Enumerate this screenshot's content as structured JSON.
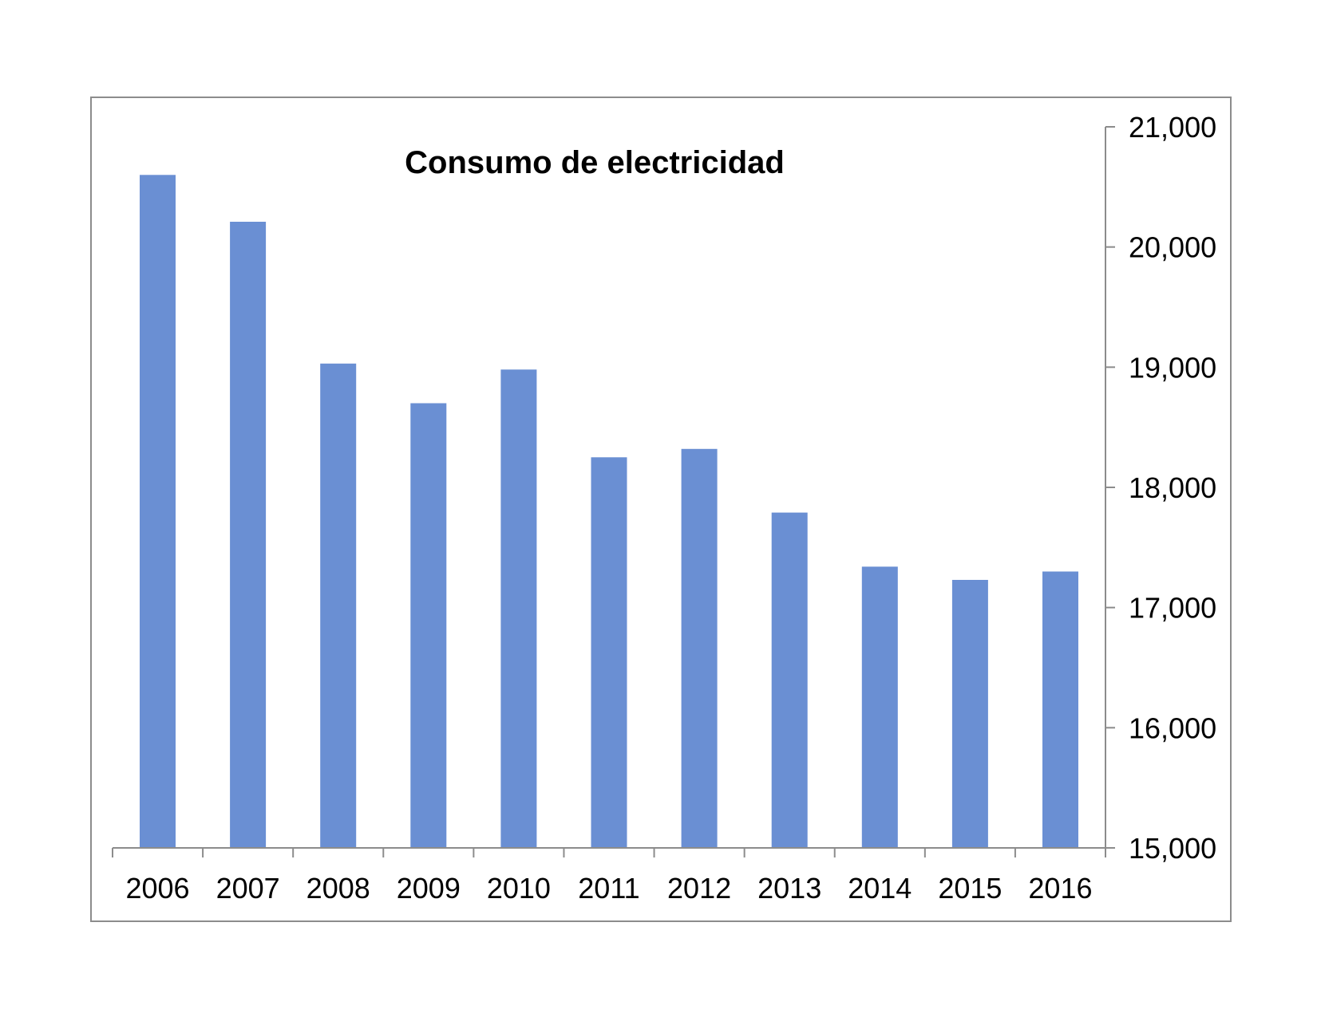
{
  "chart_data": {
    "type": "bar",
    "title": "Consumo de electricidad",
    "xlabel": "",
    "ylabel": "",
    "categories": [
      "2006",
      "2007",
      "2008",
      "2009",
      "2010",
      "2011",
      "2012",
      "2013",
      "2014",
      "2015",
      "2016"
    ],
    "values": [
      20600,
      20210,
      19030,
      18700,
      18980,
      18250,
      18320,
      17790,
      17340,
      17230,
      17300
    ],
    "ylim": [
      15000,
      21000
    ],
    "yticks": [
      "15,000",
      "16,000",
      "17,000",
      "18,000",
      "19,000",
      "20,000",
      "21,000"
    ],
    "ytick_values": [
      15000,
      16000,
      17000,
      18000,
      19000,
      20000,
      21000
    ],
    "y_axis_side": "right",
    "grid": false,
    "legend": "none",
    "bar_color": "#6a8fd3"
  }
}
